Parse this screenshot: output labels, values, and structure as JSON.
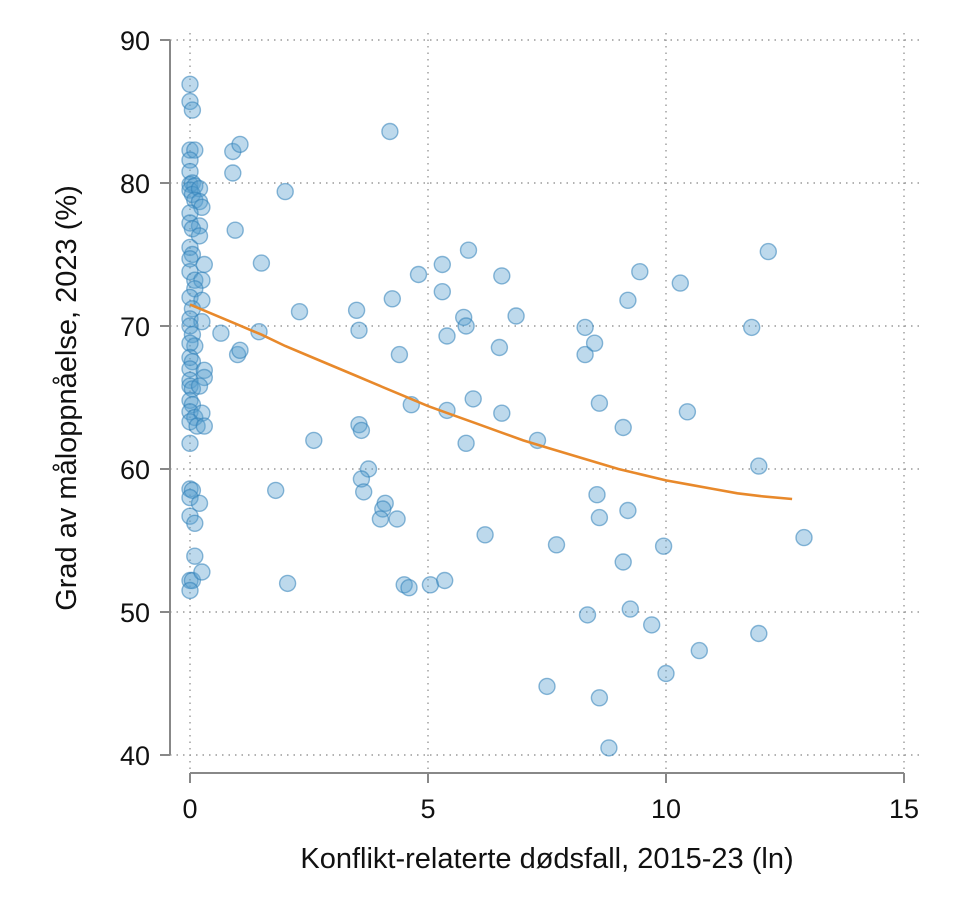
{
  "chart_data": {
    "type": "scatter",
    "title": "",
    "xlabel": "Konflikt-relaterte dødsfall, 2015-23 (ln)",
    "ylabel": "Grad av måloppnåelse, 2023 (%)",
    "xlim": [
      0,
      15
    ],
    "ylim": [
      40,
      90
    ],
    "x_ticks": [
      0,
      5,
      10,
      15
    ],
    "y_ticks": [
      40,
      50,
      60,
      70,
      80,
      90
    ],
    "grid": "dotted",
    "point_color": "#5b9fcf",
    "line_color": "#e8892b",
    "series": [
      {
        "type": "scatter",
        "points": [
          [
            0.0,
            86.9
          ],
          [
            0.0,
            85.7
          ],
          [
            0.05,
            85.1
          ],
          [
            0.0,
            82.3
          ],
          [
            0.1,
            82.3
          ],
          [
            0.0,
            81.6
          ],
          [
            0.0,
            80.8
          ],
          [
            0.0,
            79.9
          ],
          [
            0.05,
            80.0
          ],
          [
            0.1,
            79.8
          ],
          [
            0.0,
            79.5
          ],
          [
            0.05,
            79.2
          ],
          [
            0.2,
            79.6
          ],
          [
            0.1,
            78.8
          ],
          [
            0.2,
            78.7
          ],
          [
            0.25,
            78.3
          ],
          [
            0.0,
            77.9
          ],
          [
            0.0,
            77.2
          ],
          [
            0.2,
            77.0
          ],
          [
            0.05,
            76.8
          ],
          [
            0.2,
            76.3
          ],
          [
            0.0,
            75.5
          ],
          [
            0.05,
            75.0
          ],
          [
            0.0,
            74.7
          ],
          [
            0.3,
            74.3
          ],
          [
            0.0,
            73.8
          ],
          [
            0.1,
            73.2
          ],
          [
            0.25,
            73.2
          ],
          [
            0.1,
            72.6
          ],
          [
            0.0,
            72.0
          ],
          [
            0.25,
            71.8
          ],
          [
            0.05,
            71.2
          ],
          [
            0.0,
            70.5
          ],
          [
            0.25,
            70.3
          ],
          [
            0.0,
            70.0
          ],
          [
            0.05,
            69.4
          ],
          [
            0.1,
            68.6
          ],
          [
            0.0,
            68.8
          ],
          [
            0.0,
            67.8
          ],
          [
            0.05,
            67.5
          ],
          [
            0.0,
            67.0
          ],
          [
            0.3,
            66.9
          ],
          [
            0.3,
            66.4
          ],
          [
            0.0,
            66.2
          ],
          [
            0.0,
            65.8
          ],
          [
            0.05,
            65.6
          ],
          [
            0.2,
            65.8
          ],
          [
            0.0,
            64.8
          ],
          [
            0.05,
            64.5
          ],
          [
            0.0,
            64.0
          ],
          [
            0.1,
            63.6
          ],
          [
            0.25,
            63.9
          ],
          [
            0.0,
            63.3
          ],
          [
            0.15,
            63.0
          ],
          [
            0.3,
            63.0
          ],
          [
            0.0,
            61.8
          ],
          [
            0.0,
            58.6
          ],
          [
            0.05,
            58.5
          ],
          [
            0.0,
            58.0
          ],
          [
            0.2,
            57.6
          ],
          [
            0.0,
            56.7
          ],
          [
            0.1,
            56.2
          ],
          [
            0.1,
            53.9
          ],
          [
            0.0,
            52.2
          ],
          [
            0.05,
            52.2
          ],
          [
            0.25,
            52.8
          ],
          [
            0.0,
            51.5
          ],
          [
            0.9,
            82.2
          ],
          [
            1.05,
            82.7
          ],
          [
            0.9,
            80.7
          ],
          [
            2.0,
            79.4
          ],
          [
            0.95,
            76.7
          ],
          [
            1.5,
            74.4
          ],
          [
            0.65,
            69.5
          ],
          [
            1.45,
            69.6
          ],
          [
            1.0,
            68.0
          ],
          [
            1.05,
            68.3
          ],
          [
            2.3,
            71.0
          ],
          [
            2.6,
            62.0
          ],
          [
            1.8,
            58.5
          ],
          [
            2.05,
            52.0
          ],
          [
            4.2,
            83.6
          ],
          [
            3.5,
            71.1
          ],
          [
            3.55,
            69.7
          ],
          [
            4.25,
            71.9
          ],
          [
            4.4,
            68.0
          ],
          [
            4.8,
            73.6
          ],
          [
            4.65,
            64.5
          ],
          [
            3.55,
            63.1
          ],
          [
            3.6,
            62.7
          ],
          [
            3.75,
            60.0
          ],
          [
            3.6,
            59.3
          ],
          [
            3.65,
            58.4
          ],
          [
            4.1,
            57.6
          ],
          [
            4.05,
            57.2
          ],
          [
            4.0,
            56.5
          ],
          [
            4.35,
            56.5
          ],
          [
            4.5,
            51.9
          ],
          [
            4.6,
            51.7
          ],
          [
            5.05,
            51.9
          ],
          [
            5.35,
            52.2
          ],
          [
            5.3,
            74.3
          ],
          [
            5.3,
            72.4
          ],
          [
            5.85,
            75.3
          ],
          [
            5.4,
            69.3
          ],
          [
            5.75,
            70.6
          ],
          [
            5.8,
            70.0
          ],
          [
            5.4,
            64.1
          ],
          [
            5.95,
            64.9
          ],
          [
            5.8,
            61.8
          ],
          [
            6.2,
            55.4
          ],
          [
            6.55,
            73.5
          ],
          [
            6.5,
            68.5
          ],
          [
            6.85,
            70.7
          ],
          [
            6.55,
            63.9
          ],
          [
            7.3,
            62.0
          ],
          [
            7.7,
            54.7
          ],
          [
            7.5,
            44.8
          ],
          [
            8.3,
            69.9
          ],
          [
            8.3,
            68.0
          ],
          [
            8.5,
            68.8
          ],
          [
            8.6,
            64.6
          ],
          [
            8.55,
            58.2
          ],
          [
            8.6,
            56.6
          ],
          [
            8.35,
            49.8
          ],
          [
            8.6,
            44.0
          ],
          [
            8.8,
            40.5
          ],
          [
            9.1,
            62.9
          ],
          [
            9.2,
            71.8
          ],
          [
            9.45,
            73.8
          ],
          [
            9.2,
            57.1
          ],
          [
            9.1,
            53.5
          ],
          [
            9.25,
            50.2
          ],
          [
            9.7,
            49.1
          ],
          [
            9.95,
            54.6
          ],
          [
            10.0,
            45.7
          ],
          [
            10.3,
            73.0
          ],
          [
            10.45,
            64.0
          ],
          [
            10.7,
            47.3
          ],
          [
            11.8,
            69.9
          ],
          [
            12.15,
            75.2
          ],
          [
            11.95,
            60.2
          ],
          [
            11.95,
            48.5
          ],
          [
            12.9,
            55.2
          ]
        ]
      },
      {
        "type": "line",
        "x": [
          0,
          0.5,
          1,
          1.5,
          2,
          2.5,
          3,
          3.5,
          4,
          4.5,
          5,
          5.5,
          6,
          6.5,
          7,
          7.5,
          8,
          8.5,
          9,
          9.5,
          10,
          10.5,
          11,
          11.5,
          12,
          12.65
        ],
        "y": [
          71.5,
          70.8,
          70.1,
          69.4,
          68.6,
          67.9,
          67.2,
          66.5,
          65.8,
          65.1,
          64.4,
          63.8,
          63.2,
          62.6,
          62.0,
          61.5,
          61.0,
          60.5,
          60.0,
          59.6,
          59.2,
          58.9,
          58.6,
          58.3,
          58.1,
          57.9
        ]
      }
    ]
  }
}
